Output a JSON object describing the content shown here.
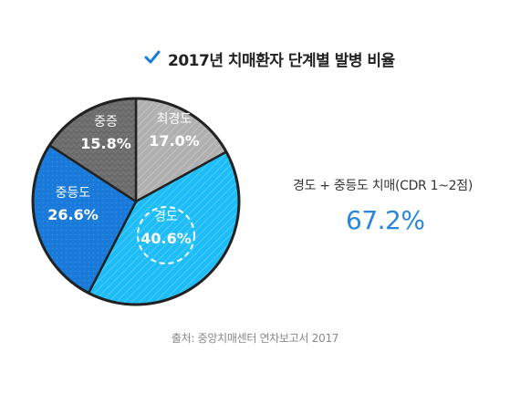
{
  "title": "2017년 치매환자 단계별 발병 비율",
  "summary": {
    "label": "경도 + 중등도 치매(CDR 1~2점)",
    "value": "67.2%"
  },
  "source": "출처: 중앙치매센터 연차보고서 2017",
  "chart_data": {
    "type": "pie",
    "title": "2017년 치매환자 단계별 발병 비율",
    "slices": [
      {
        "label": "최경도",
        "value": 17.0,
        "display": "17.0%",
        "color": "#b0b0b0"
      },
      {
        "label": "경도",
        "value": 40.6,
        "display": "40.6%",
        "color": "#1ebdf7"
      },
      {
        "label": "중등도",
        "value": 26.6,
        "display": "26.6%",
        "color": "#1a7ad9"
      },
      {
        "label": "중증",
        "value": 15.8,
        "display": "15.8%",
        "color": "#6a6a6a"
      }
    ]
  },
  "colors": {
    "checkmark": "#1a7ad9",
    "summary_value": "#2a86d8"
  },
  "icons": {
    "title_marker": "checkmark-icon"
  }
}
